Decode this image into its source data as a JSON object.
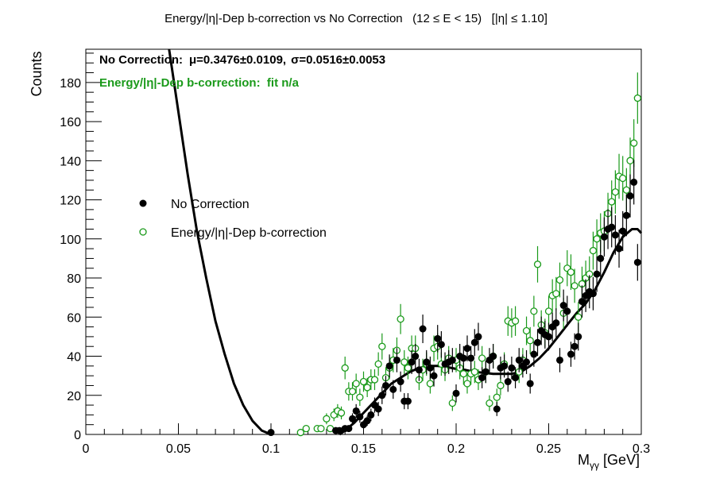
{
  "chart_data": {
    "type": "scatter",
    "title": "Energy/|η|-Dep b-correction vs No Correction   (12 ≤ E < 15)   [|η| ≤ 1.10]",
    "xlabel": "M",
    "xlabel_sub": "γγ",
    "xlabel_unit": " [GeV]",
    "ylabel": "Counts",
    "xlim": [
      0,
      0.3
    ],
    "ylim": [
      0,
      197
    ],
    "x_ticks": [
      0,
      0.05,
      0.1,
      0.15,
      0.2,
      0.25,
      0.3
    ],
    "x_tick_labels": [
      "0",
      "0.05",
      "0.1",
      "0.15",
      "0.2",
      "0.25",
      "0.3"
    ],
    "y_ticks": [
      0,
      20,
      40,
      60,
      80,
      100,
      120,
      140,
      160,
      180
    ],
    "y_tick_labels": [
      "0",
      "20",
      "40",
      "60",
      "80",
      "100",
      "120",
      "140",
      "160",
      "180"
    ],
    "grid": false,
    "legend_position": "left-middle",
    "annotations": {
      "nocorr_prefix": "No Correction:",
      "nocorr_mu": "μ=0.3476±0.0109,",
      "nocorr_sigma": "σ=0.0516±0.0053",
      "corr_text": "Energy/|η|-Dep b-correction:  fit n/a"
    },
    "colors": {
      "no_correction": "#000000",
      "corrected": "#1a9a1a",
      "fit": "#000000"
    },
    "series": [
      {
        "name": "No Correction",
        "marker": "filled-circle",
        "x": [
          0.1,
          0.135,
          0.137,
          0.14,
          0.142,
          0.144,
          0.146,
          0.148,
          0.15,
          0.152,
          0.154,
          0.156,
          0.158,
          0.16,
          0.162,
          0.164,
          0.166,
          0.168,
          0.17,
          0.172,
          0.174,
          0.176,
          0.178,
          0.18,
          0.182,
          0.184,
          0.186,
          0.188,
          0.19,
          0.192,
          0.194,
          0.196,
          0.198,
          0.2,
          0.202,
          0.204,
          0.206,
          0.208,
          0.21,
          0.212,
          0.214,
          0.216,
          0.218,
          0.22,
          0.222,
          0.224,
          0.226,
          0.228,
          0.23,
          0.232,
          0.234,
          0.236,
          0.238,
          0.24,
          0.242,
          0.244,
          0.246,
          0.248,
          0.25,
          0.252,
          0.254,
          0.256,
          0.258,
          0.26,
          0.262,
          0.264,
          0.266,
          0.268,
          0.27,
          0.272,
          0.274,
          0.276,
          0.278,
          0.28,
          0.282,
          0.284,
          0.286,
          0.288,
          0.29,
          0.292,
          0.294,
          0.296,
          0.298
        ],
        "y": [
          1,
          2,
          2,
          3,
          3,
          8,
          12,
          9,
          5,
          7,
          10,
          15,
          13,
          20,
          25,
          35,
          23,
          38,
          27,
          17,
          17,
          37,
          40,
          33,
          54,
          37,
          34,
          30,
          49,
          46,
          36,
          37,
          38,
          21,
          40,
          39,
          44,
          39,
          47,
          50,
          29,
          32,
          38,
          40,
          13,
          34,
          35,
          27,
          34,
          29,
          38,
          35,
          37,
          26,
          41,
          47,
          53,
          51,
          50,
          55,
          57,
          38,
          66,
          63,
          41,
          45,
          50,
          68,
          71,
          73,
          72,
          82,
          90,
          101,
          105,
          106,
          102,
          95,
          104,
          112,
          122,
          129,
          88
        ],
        "y_err": [
          1,
          1.4,
          1.4,
          1.7,
          1.7,
          2.8,
          3.5,
          3,
          2.2,
          2.6,
          3.2,
          3.9,
          3.6,
          4.5,
          5,
          5.9,
          4.8,
          6.2,
          5.2,
          4.1,
          4.1,
          6.1,
          6.3,
          5.7,
          7.3,
          6.1,
          5.8,
          5.5,
          7,
          6.8,
          6,
          6.1,
          6.2,
          4.6,
          6.3,
          6.2,
          6.6,
          6.2,
          6.9,
          7.1,
          5.4,
          5.7,
          6.2,
          6.3,
          3.6,
          5.8,
          5.9,
          5.2,
          5.8,
          5.4,
          6.2,
          5.9,
          6.1,
          5.1,
          6.4,
          6.9,
          7.3,
          7.1,
          7.1,
          7.4,
          7.5,
          6.2,
          8.1,
          7.9,
          6.4,
          6.7,
          7.1,
          8.2,
          8.4,
          8.5,
          8.5,
          9.1,
          9.5,
          10,
          10.2,
          10.3,
          10.1,
          9.7,
          10.2,
          10.6,
          11,
          11.4,
          9.4
        ]
      },
      {
        "name": "Energy/|η|-Dep b-correction",
        "marker": "open-circle",
        "x": [
          0.116,
          0.119,
          0.125,
          0.127,
          0.13,
          0.132,
          0.134,
          0.136,
          0.138,
          0.14,
          0.142,
          0.144,
          0.146,
          0.148,
          0.15,
          0.152,
          0.154,
          0.156,
          0.158,
          0.16,
          0.162,
          0.164,
          0.166,
          0.168,
          0.17,
          0.172,
          0.174,
          0.176,
          0.178,
          0.18,
          0.182,
          0.184,
          0.186,
          0.188,
          0.19,
          0.192,
          0.194,
          0.196,
          0.198,
          0.2,
          0.202,
          0.204,
          0.206,
          0.208,
          0.21,
          0.212,
          0.214,
          0.216,
          0.218,
          0.22,
          0.222,
          0.224,
          0.226,
          0.228,
          0.23,
          0.232,
          0.234,
          0.236,
          0.238,
          0.24,
          0.242,
          0.244,
          0.246,
          0.248,
          0.25,
          0.252,
          0.254,
          0.256,
          0.258,
          0.26,
          0.262,
          0.264,
          0.266,
          0.268,
          0.27,
          0.272,
          0.274,
          0.276,
          0.278,
          0.28,
          0.282,
          0.284,
          0.286,
          0.288,
          0.29,
          0.292,
          0.294,
          0.296,
          0.298
        ],
        "y": [
          1,
          3,
          3,
          3,
          8,
          3,
          10,
          12,
          11,
          34,
          22,
          22,
          26,
          19,
          27,
          24,
          28,
          28,
          36,
          45,
          29,
          34,
          38,
          43,
          59,
          37,
          34,
          44,
          44,
          28,
          33,
          36,
          26,
          44,
          45,
          36,
          33,
          39,
          16,
          38,
          34,
          31,
          26,
          31,
          32,
          28,
          39,
          32,
          16,
          40,
          19,
          25,
          36,
          58,
          57,
          58,
          32,
          38,
          53,
          48,
          63,
          87,
          56,
          52,
          63,
          71,
          72,
          79,
          62,
          85,
          83,
          76,
          60,
          77,
          80,
          82,
          94,
          100,
          103,
          104,
          113,
          119,
          124,
          132,
          131,
          125,
          140,
          149,
          172
        ],
        "y_err": [
          1,
          1.7,
          1.7,
          1.7,
          2.8,
          1.7,
          3.2,
          3.5,
          3.3,
          5.8,
          4.7,
          4.7,
          5.1,
          4.4,
          5.2,
          4.9,
          5.3,
          5.3,
          6,
          6.7,
          5.4,
          5.8,
          6.2,
          6.6,
          7.7,
          6.1,
          5.8,
          6.6,
          6.6,
          5.3,
          5.7,
          6,
          5.1,
          6.6,
          6.7,
          6,
          5.7,
          6.2,
          4,
          6.2,
          5.8,
          5.6,
          5.1,
          5.6,
          5.7,
          5.3,
          6.2,
          5.7,
          4,
          6.3,
          4.4,
          5,
          6,
          7.6,
          7.5,
          7.6,
          5.7,
          6.2,
          7.3,
          6.9,
          7.9,
          9.3,
          7.5,
          7.2,
          7.9,
          8.4,
          8.5,
          8.9,
          7.9,
          9.2,
          9.1,
          8.7,
          7.7,
          8.8,
          8.9,
          9.1,
          9.7,
          10,
          10.1,
          10.2,
          10.6,
          10.9,
          11.1,
          11.5,
          11.4,
          11.2,
          11.8,
          12.2,
          13.1
        ]
      },
      {
        "name": "",
        "type": "line",
        "role": "fit",
        "x": [
          0.045,
          0.05,
          0.055,
          0.06,
          0.065,
          0.07,
          0.075,
          0.08,
          0.085,
          0.09,
          0.095,
          0.1
        ],
        "y": [
          197,
          165,
          133,
          104,
          80,
          58,
          41,
          26,
          15,
          7,
          2,
          0
        ]
      },
      {
        "name": "",
        "type": "line",
        "role": "fit",
        "x": [
          0.137,
          0.14,
          0.145,
          0.15,
          0.155,
          0.16,
          0.165,
          0.17,
          0.175,
          0.18,
          0.185,
          0.19,
          0.195,
          0.2,
          0.205,
          0.21,
          0.215,
          0.22,
          0.225,
          0.23,
          0.235,
          0.24,
          0.245,
          0.25,
          0.255,
          0.26,
          0.265,
          0.27,
          0.275,
          0.28,
          0.285,
          0.29,
          0.295,
          0.298,
          0.3
        ],
        "y": [
          0,
          2,
          6,
          11,
          16,
          21,
          26,
          29,
          32,
          34,
          35,
          35,
          34.5,
          33.5,
          33,
          32,
          31.5,
          31,
          31,
          31,
          32,
          35,
          39,
          44,
          50,
          56,
          62,
          67,
          74,
          83,
          93,
          101,
          105,
          105,
          103
        ]
      }
    ]
  }
}
